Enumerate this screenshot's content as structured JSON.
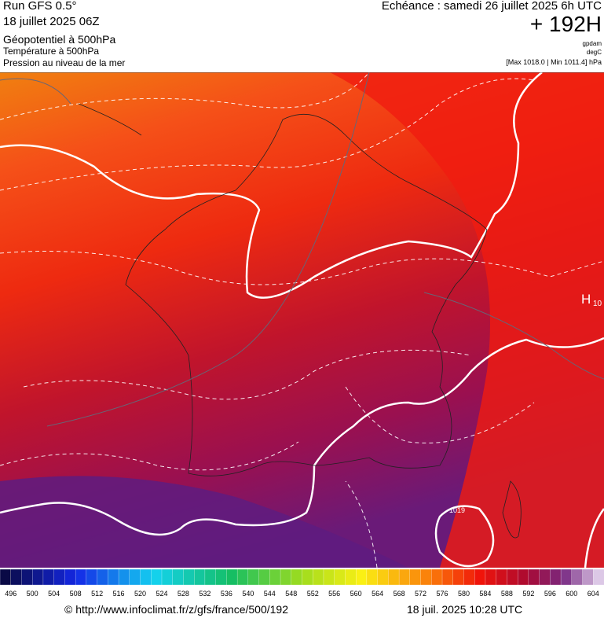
{
  "header": {
    "run": "Run GFS 0.5°",
    "date": "18 juillet 2025 06Z",
    "line1": "Géopotentiel à 500hPa",
    "line2": "Température à 500hPa",
    "line3": "Pression au niveau de la mer",
    "echeance": "Echéance : samedi 26 juillet 2025 6h UTC",
    "hour": "+ 192H",
    "unit1": "gpdam",
    "unit2": "degC",
    "pressure": "[Max 1018.0 | Min 1011.4] hPa"
  },
  "map": {
    "high_letter": "H",
    "high_value": "10",
    "contour_label": "1019"
  },
  "colorbar": {
    "labels": [
      "496",
      "500",
      "504",
      "508",
      "512",
      "516",
      "520",
      "524",
      "528",
      "532",
      "536",
      "540",
      "544",
      "548",
      "552",
      "556",
      "560",
      "564",
      "568",
      "572",
      "576",
      "580",
      "584",
      "588",
      "592",
      "596",
      "600",
      "604"
    ]
  },
  "footer": {
    "url": "© http://www.infoclimat.fr/z/gfs/france/500/192",
    "timestamp": "18 juil. 2025 10:28 UTC"
  }
}
